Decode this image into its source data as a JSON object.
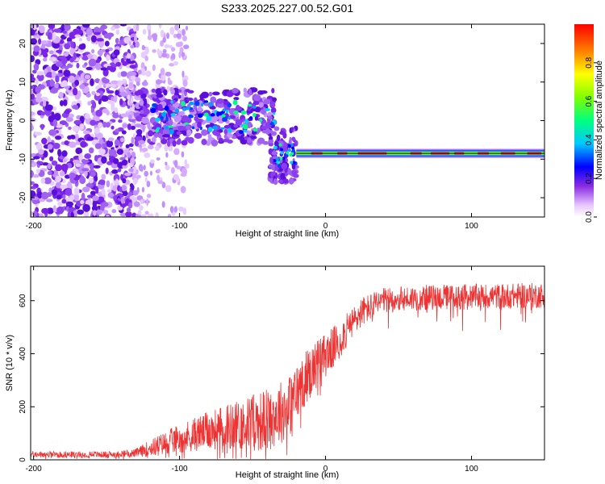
{
  "title": "S233.2025.227.00.52.G01",
  "chart_data": [
    {
      "type": "heatmap",
      "xlabel": "Height of straight line (km)",
      "ylabel": "Frequency (Hz)",
      "xlim": [
        -202,
        150
      ],
      "ylim": [
        -25,
        25
      ],
      "xticks": [
        -200,
        -100,
        0,
        100
      ],
      "yticks": [
        20,
        10,
        0,
        -10,
        -20
      ],
      "colorbar": {
        "label": "Normalized spectral amplitude",
        "range": [
          0,
          1
        ],
        "ticks": [
          0.0,
          0.2,
          0.4,
          0.6,
          0.8
        ]
      },
      "features": {
        "fitted_line_frequency_hz": -8.5,
        "line_start_km": -20,
        "noise_region_km": [
          -202,
          -130
        ],
        "cluster_region_km": [
          -130,
          -35
        ],
        "cluster_center_frequency_hz": 1
      },
      "axis_ticks_text": {
        "x": [
          "-200",
          "-100",
          "0",
          "100"
        ],
        "y": [
          "20",
          "10",
          "0",
          "-10",
          "-20"
        ],
        "cb": [
          "0.0",
          "0.2",
          "0.4",
          "0.6",
          "0.8"
        ]
      }
    },
    {
      "type": "line",
      "xlabel": "Height of straight line (km)",
      "ylabel": "SNR (10 * v/v)",
      "xlim": [
        -202,
        150
      ],
      "ylim": [
        0,
        730
      ],
      "xticks": [
        -200,
        -100,
        0,
        100
      ],
      "yticks": [
        0,
        200,
        400,
        600
      ],
      "series": [
        {
          "name": "SNR",
          "color": "#ee3333",
          "envelope_x": [
            -202,
            -150,
            -130,
            -120,
            -100,
            -80,
            -60,
            -40,
            -25,
            -15,
            -5,
            5,
            15,
            25,
            40,
            60,
            100,
            150
          ],
          "envelope_mean": [
            20,
            20,
            25,
            45,
            80,
            110,
            130,
            150,
            200,
            300,
            370,
            420,
            490,
            560,
            600,
            610,
            615,
            620
          ],
          "envelope_spread": [
            15,
            15,
            20,
            40,
            70,
            90,
            120,
            150,
            150,
            130,
            110,
            100,
            80,
            70,
            60,
            60,
            60,
            60
          ]
        }
      ],
      "axis_ticks_text": {
        "x": [
          "-200",
          "-100",
          "0",
          "100"
        ],
        "y": [
          "0",
          "200",
          "400",
          "600"
        ]
      }
    }
  ]
}
